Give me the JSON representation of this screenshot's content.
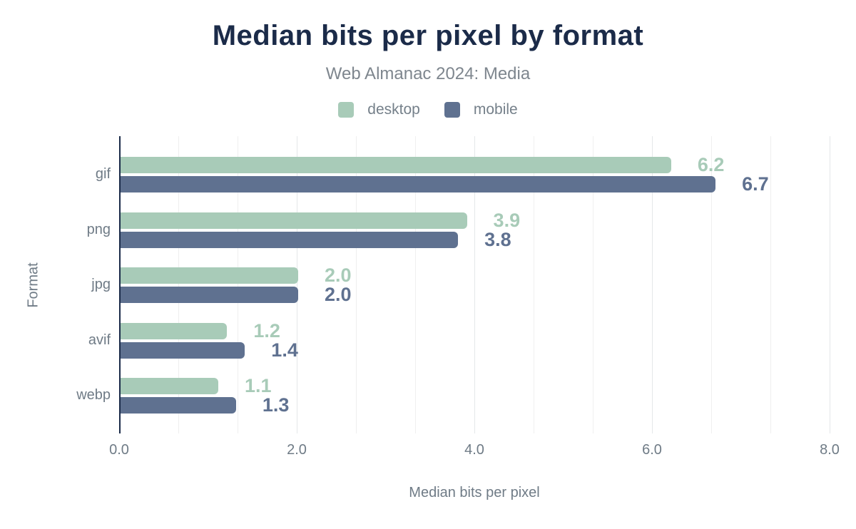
{
  "header": {
    "title": "Median bits per pixel by format",
    "subtitle": "Web Almanac 2024: Media"
  },
  "chart_data": {
    "type": "bar",
    "orientation": "horizontal",
    "title": "Median bits per pixel by format",
    "subtitle": "Web Almanac 2024: Media",
    "categories": [
      "gif",
      "png",
      "jpg",
      "avif",
      "webp"
    ],
    "series": [
      {
        "name": "desktop",
        "color": "#a8cbb8",
        "values": [
          6.2,
          3.9,
          2.0,
          1.2,
          1.1
        ]
      },
      {
        "name": "mobile",
        "color": "#5f7190",
        "values": [
          6.7,
          3.8,
          2.0,
          1.4,
          1.3
        ]
      }
    ],
    "xlabel": "Median bits per pixel",
    "ylabel": "Format",
    "xlim": [
      0,
      8
    ],
    "xticks": [
      {
        "value": 0,
        "label": "0.0"
      },
      {
        "value": 2,
        "label": "2.0"
      },
      {
        "value": 4,
        "label": "4.0"
      },
      {
        "value": 6,
        "label": "6.0"
      },
      {
        "value": 8,
        "label": "8.0"
      }
    ],
    "grid": {
      "minor_step": 0.6667,
      "major_step": 2,
      "orientation": "vertical"
    },
    "legend_position": "top",
    "value_label_format": "one_decimal"
  },
  "colors": {
    "title": "#1b2b49",
    "subtitle": "#7e868e",
    "axis_text": "#6f7b86",
    "legend_text": "#75808a",
    "axis_line": "#1b2b49",
    "gridline_minor": "#efefef",
    "gridline_major": "#e4e7e9",
    "background": "#ffffff"
  }
}
